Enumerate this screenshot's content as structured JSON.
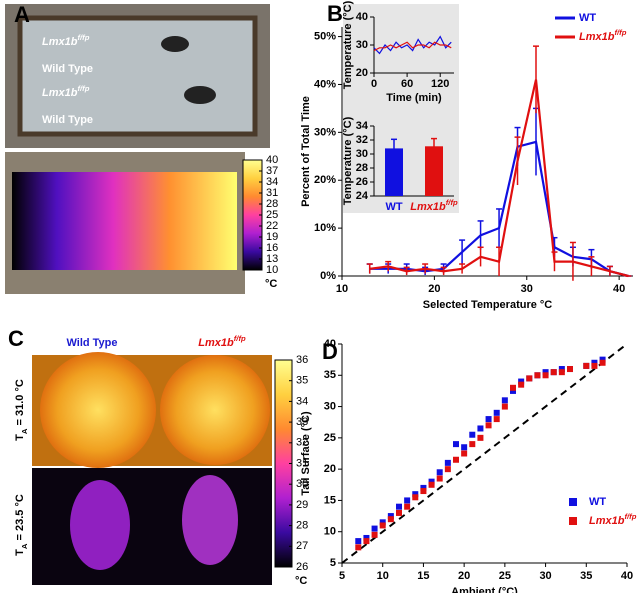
{
  "panels": {
    "A": "A",
    "B": "B",
    "C": "C",
    "D": "D"
  },
  "images": {
    "a_labels": [
      {
        "name": "Lmx1b",
        "sup": "f/fp"
      },
      {
        "name": "Wild Type"
      },
      {
        "name": "Lmx1b",
        "sup": "f/fp"
      },
      {
        "name": "Wild Type"
      }
    ],
    "c_columns": [
      {
        "name": "Wild Type"
      },
      {
        "name": "Lmx1b",
        "sup": "f/fp"
      }
    ],
    "c_rows": [
      {
        "symbol": "T",
        "sub": "A",
        "rest": " = 31.0 °C"
      },
      {
        "symbol": "T",
        "sub": "A",
        "rest": " = 23.5 °C"
      }
    ]
  },
  "chart_data": [
    {
      "type": "colorbar",
      "unit": "°C",
      "ylim": [
        10,
        40
      ],
      "yticks": [
        10,
        13,
        16,
        19,
        22,
        25,
        28,
        31,
        34,
        37,
        40
      ],
      "colors": [
        "#000000",
        "#3a0aa0",
        "#b020d0",
        "#ff40a0",
        "#ff8a30",
        "#ffd040",
        "#ffff90"
      ]
    },
    {
      "type": "line",
      "xlabel": "Selected Temperature °C",
      "ylabel": "Percent of Total Time",
      "legend": "top-right",
      "x": [
        13,
        15,
        17,
        19,
        21,
        23,
        25,
        27,
        29,
        31,
        33,
        35,
        37,
        39,
        41
      ],
      "xlim": [
        10,
        41.5
      ],
      "xticks": [
        10,
        20,
        30,
        40
      ],
      "ylim": [
        0,
        52
      ],
      "yticks": [
        {
          "value": 0,
          "label": "0%"
        },
        {
          "value": 10,
          "label": "10%"
        },
        {
          "value": 20,
          "label": "20%"
        },
        {
          "value": 30,
          "label": "30%"
        },
        {
          "value": 40,
          "label": "40%"
        },
        {
          "value": 50,
          "label": "50%"
        }
      ],
      "series": [
        {
          "name": "WT",
          "color": "#1010e0",
          "values": [
            1.5,
            1.5,
            1.5,
            1,
            1.5,
            5,
            8.5,
            10,
            27,
            28,
            6,
            4,
            3.5,
            1,
            0
          ],
          "errors": [
            1,
            1,
            1,
            0.8,
            1,
            2.5,
            3,
            4,
            4,
            7,
            2,
            2,
            2,
            1,
            0
          ]
        },
        {
          "name": "Lmx1b",
          "sup": "f/fp",
          "color": "#e01010",
          "values": [
            1.5,
            2,
            1,
            1.5,
            1,
            1.5,
            4,
            3,
            24,
            41,
            3,
            3,
            2,
            1,
            0
          ],
          "errors": [
            1,
            1,
            0.8,
            1,
            0.8,
            1,
            2,
            3,
            5,
            7,
            2,
            4,
            2,
            1,
            0
          ]
        }
      ]
    },
    {
      "type": "line",
      "xlabel": "Time (min)",
      "ylabel": "Temperature (°C)",
      "x": [
        0,
        10,
        20,
        30,
        40,
        50,
        60,
        70,
        80,
        90,
        100,
        110,
        120,
        130,
        140
      ],
      "xlim": [
        0,
        145
      ],
      "xticks": [
        0,
        60,
        120
      ],
      "ylim": [
        20,
        40
      ],
      "yticks": [
        20,
        30,
        40
      ],
      "series": [
        {
          "name": "WT",
          "color": "#1010e0",
          "values": [
            29,
            27,
            30,
            28,
            31,
            29,
            30,
            28,
            32,
            29,
            31,
            30,
            33,
            29,
            31
          ]
        },
        {
          "name": "Lmx1b",
          "color": "#e01010",
          "values": [
            28,
            29,
            29,
            30,
            29,
            30,
            31,
            29,
            30,
            30,
            29,
            31,
            30,
            30,
            29
          ]
        }
      ]
    },
    {
      "type": "bar",
      "ylabel": "Temperature (°C)",
      "categories": [
        {
          "name": "WT"
        },
        {
          "name": "Lmx1b",
          "sup": "f/fp"
        }
      ],
      "values": [
        30.8,
        31.1
      ],
      "errors": [
        1.3,
        1.1
      ],
      "colors": [
        "#1010e0",
        "#e01010"
      ],
      "ylim": [
        24,
        34
      ],
      "yticks": [
        24,
        26,
        28,
        30,
        32,
        34
      ]
    },
    {
      "type": "colorbar",
      "unit": "°C",
      "ylim": [
        26,
        36
      ],
      "yticks": [
        26,
        27,
        28,
        29,
        30,
        31,
        32,
        33,
        34,
        35,
        36
      ],
      "colors": [
        "#000000",
        "#3a0aa0",
        "#b020d0",
        "#ff40a0",
        "#ff8a30",
        "#ffd040",
        "#ffff90"
      ]
    },
    {
      "type": "scatter",
      "xlabel": "Ambient (°C)",
      "ylabel": "Tail Surface (°C)",
      "legend": "bottom-right",
      "xlim": [
        5,
        40
      ],
      "xticks": [
        5,
        10,
        15,
        20,
        25,
        30,
        35,
        40
      ],
      "ylim": [
        5,
        40
      ],
      "yticks": [
        5,
        10,
        15,
        20,
        25,
        30,
        35,
        40
      ],
      "series": [
        {
          "name": "WT",
          "color": "#1010e0",
          "x": [
            7,
            8,
            9,
            10,
            11,
            12,
            13,
            14,
            15,
            16,
            17,
            18,
            19,
            20,
            21,
            22,
            23,
            24,
            25,
            26,
            27,
            28,
            29,
            30,
            31,
            32,
            33,
            35,
            36,
            37
          ],
          "values": [
            8.5,
            9,
            10.5,
            11.5,
            12.5,
            14,
            15,
            16,
            17,
            18,
            19.5,
            21,
            24,
            23.5,
            25.5,
            26.5,
            28,
            29,
            31,
            32.5,
            34,
            34.5,
            35,
            35.5,
            35.5,
            36,
            36,
            36.5,
            37,
            37.5
          ]
        },
        {
          "name": "Lmx1b",
          "sup": "f/fp",
          "color": "#e01010",
          "x": [
            7,
            8,
            9,
            10,
            11,
            12,
            13,
            14,
            15,
            16,
            17,
            18,
            19,
            20,
            21,
            22,
            23,
            24,
            25,
            26,
            27,
            28,
            29,
            30,
            31,
            32,
            33,
            35,
            36,
            37
          ],
          "values": [
            7.5,
            8.5,
            9.5,
            11,
            12,
            13,
            14,
            15.5,
            16.5,
            17.5,
            18.5,
            20,
            21.5,
            22.5,
            24,
            25,
            27,
            28,
            30,
            33,
            33.5,
            34.5,
            35,
            35,
            35.5,
            35.5,
            36,
            36.5,
            36.5,
            37
          ]
        }
      ]
    }
  ]
}
